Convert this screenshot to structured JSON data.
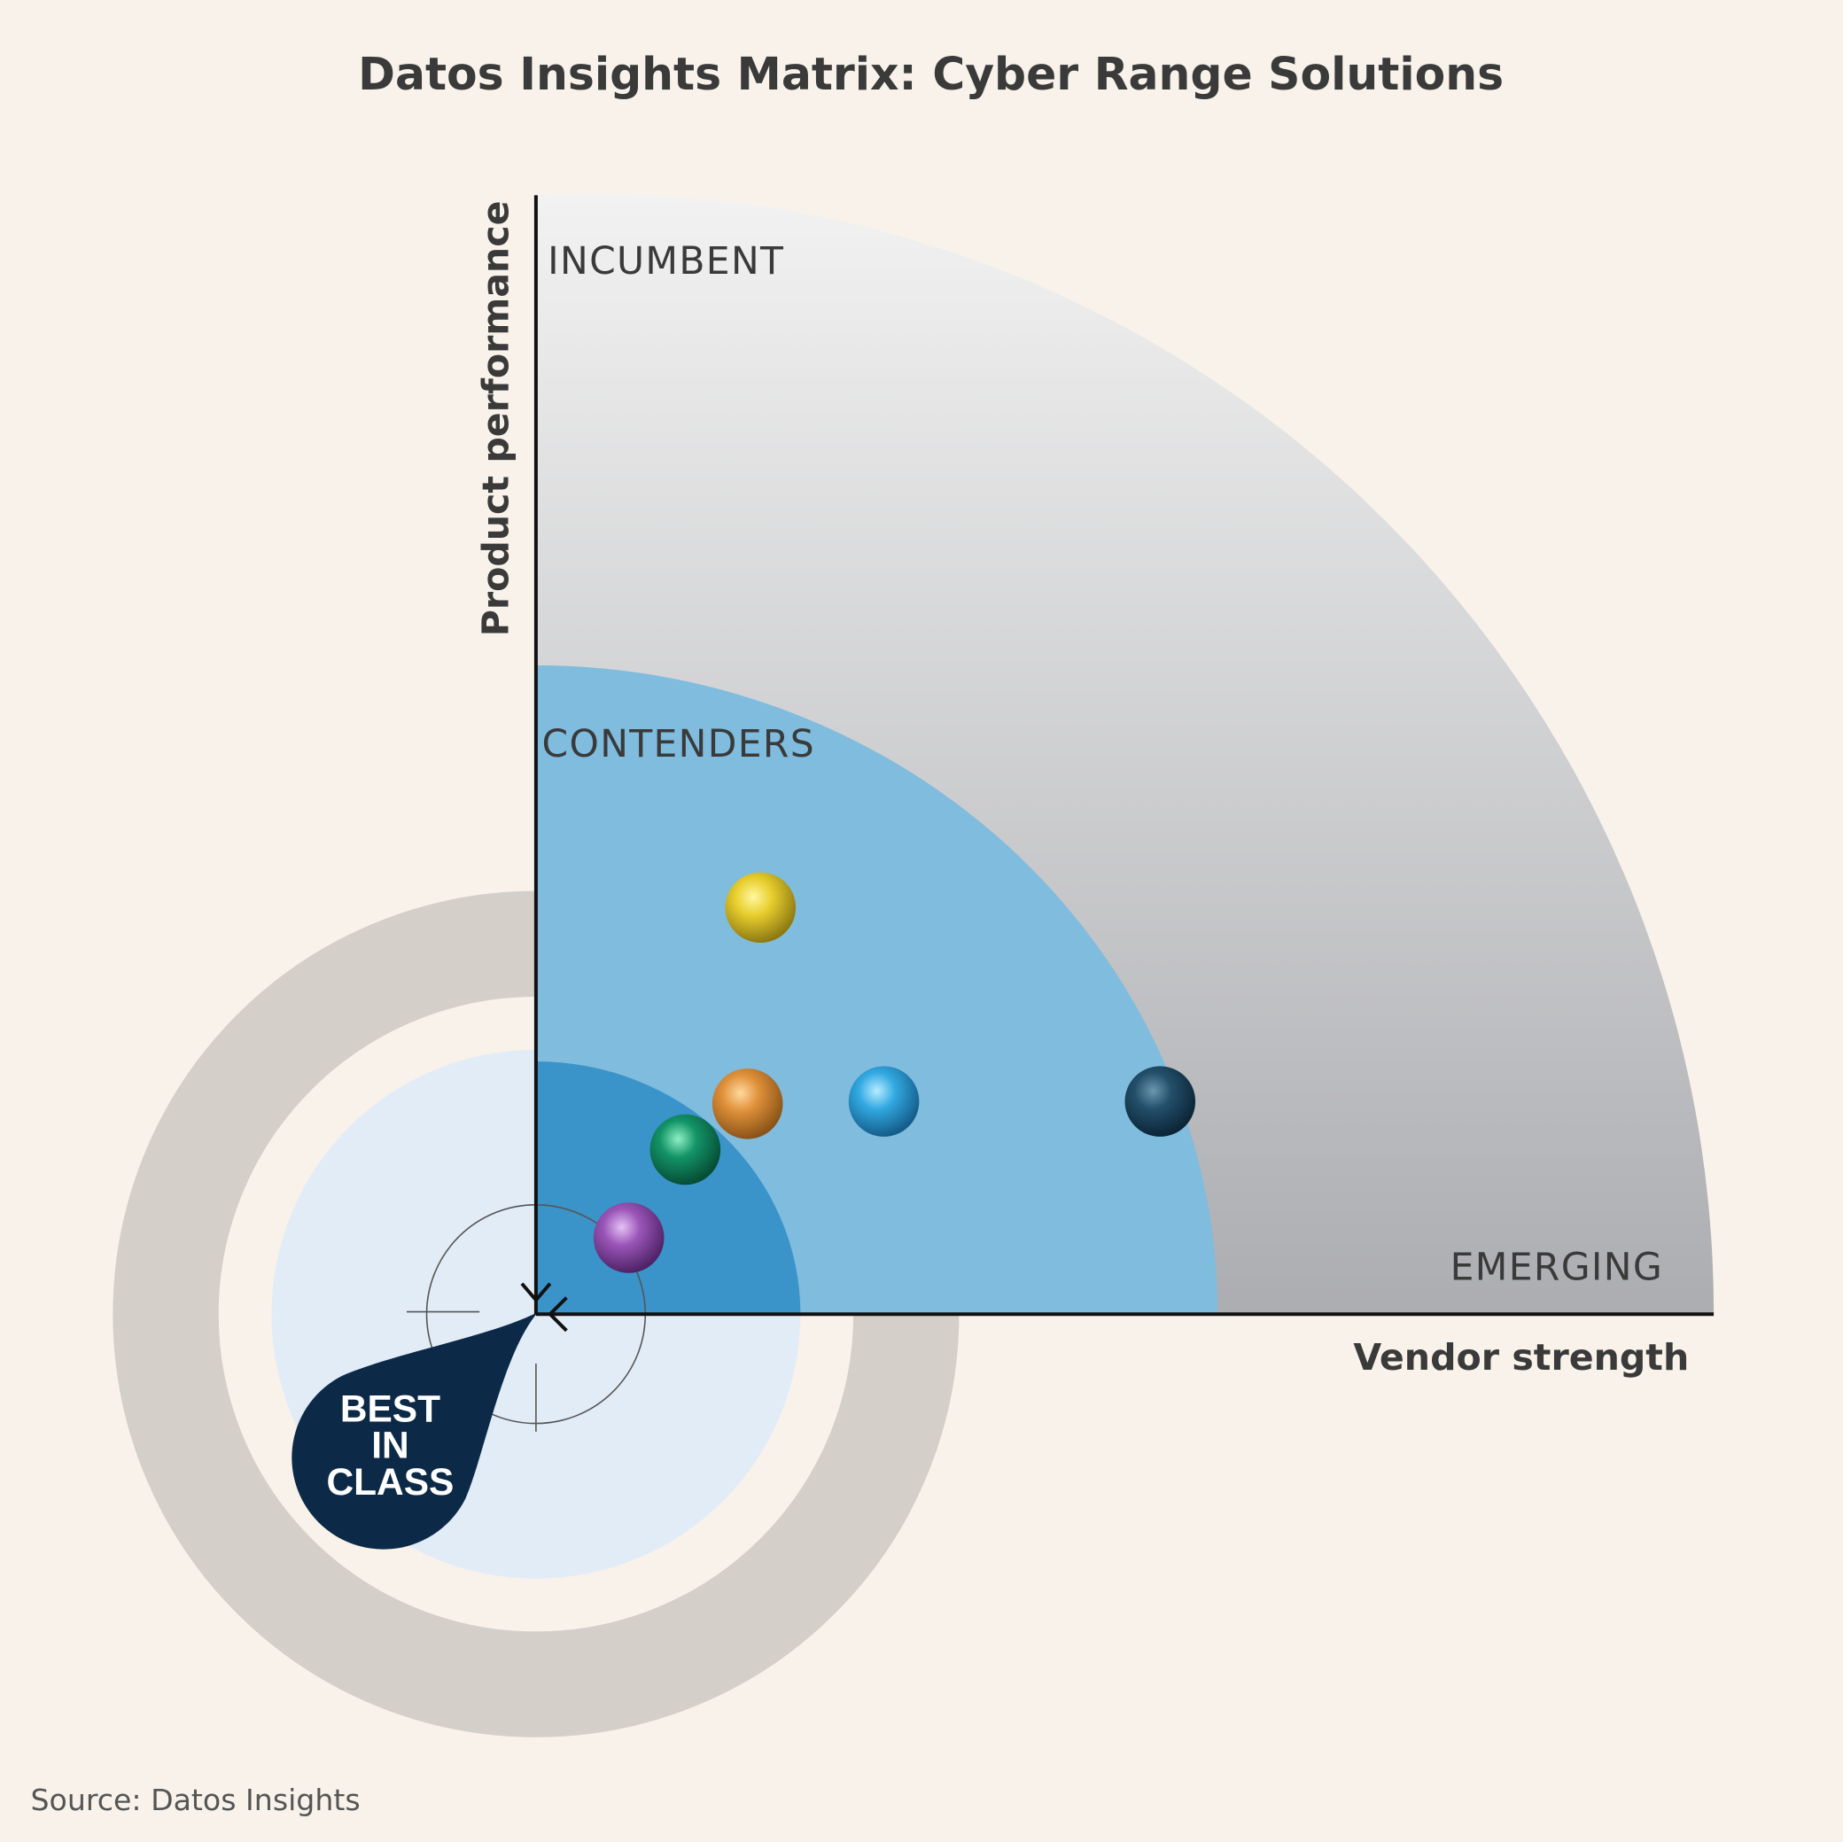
{
  "header": {
    "title": "Datos Insights Matrix: Cyber Range Solutions"
  },
  "axes": {
    "x_label": "Vendor strength",
    "y_label": "Product performance"
  },
  "zones": {
    "outer": "INCUMBENT",
    "middle": "CONTENDERS",
    "corner": "EMERGING"
  },
  "badge": {
    "lines": [
      "BEST",
      "IN",
      "CLASS"
    ]
  },
  "footer": {
    "source": "Source: Datos Insights"
  }
}
